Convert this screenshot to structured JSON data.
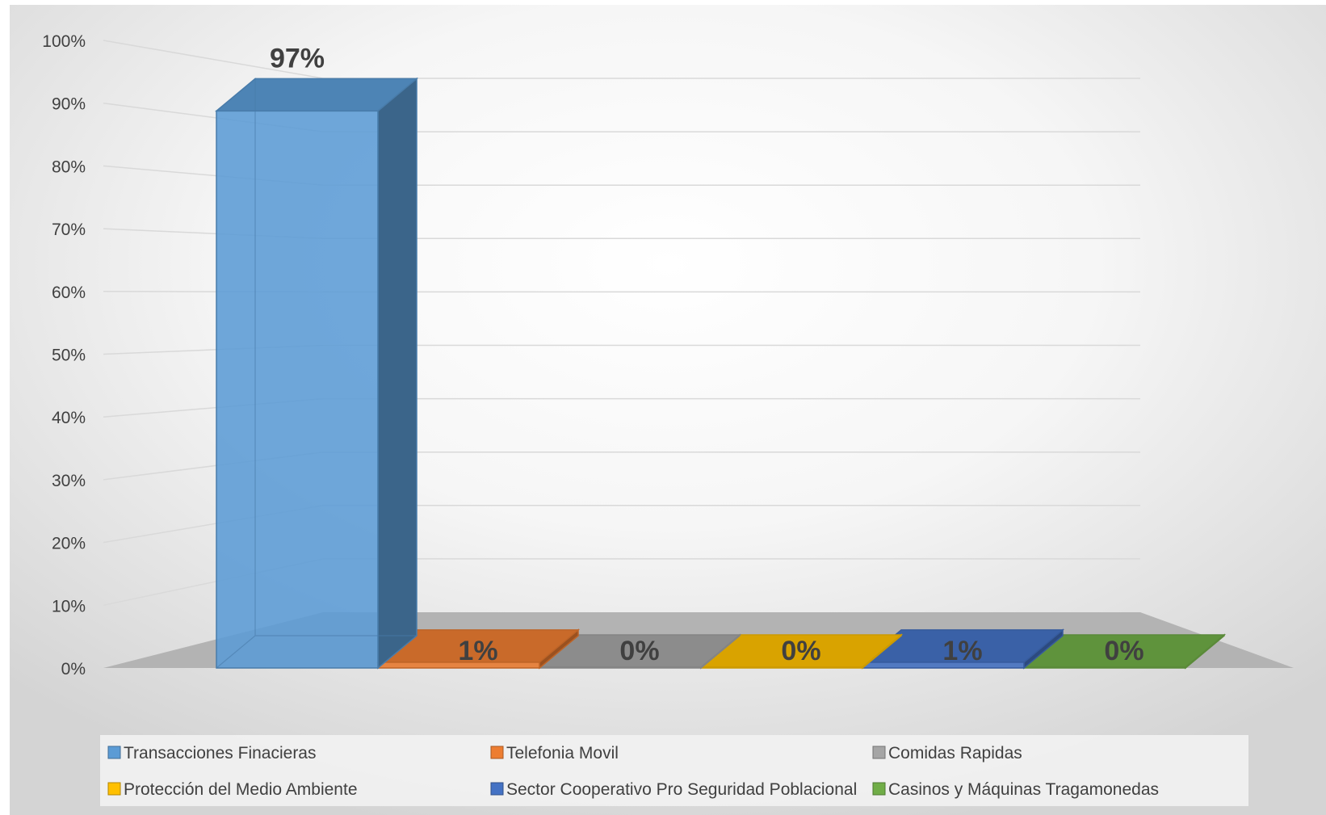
{
  "chart_data": {
    "type": "bar",
    "style": "3d-column",
    "title": "",
    "xlabel": "",
    "ylabel": "",
    "ylim": [
      0,
      1
    ],
    "yticks": [
      0,
      0.1,
      0.2,
      0.3,
      0.4,
      0.5,
      0.6,
      0.7,
      0.8,
      0.9,
      1.0
    ],
    "ytick_labels": [
      "0%",
      "10%",
      "20%",
      "30%",
      "40%",
      "50%",
      "60%",
      "70%",
      "80%",
      "90%",
      "100%"
    ],
    "grid": true,
    "legend_position": "bottom",
    "categories": [
      "Transacciones Finacieras",
      "Telefonia Movil",
      "Comidas Rapidas",
      "Protección del Medio Ambiente",
      "Sector Cooperativo Pro Seguridad Poblacional",
      "Casinos y Máquinas Tragamonedas"
    ],
    "values": [
      0.97,
      0.01,
      0.0,
      0.0,
      0.01,
      0.0
    ],
    "data_labels": [
      "97%",
      "1%",
      "0%",
      "0%",
      "1%",
      "0%"
    ],
    "colors": [
      "#5b9bd5",
      "#ed7d31",
      "#a5a5a5",
      "#ffc000",
      "#4472c4",
      "#70ad47"
    ]
  }
}
